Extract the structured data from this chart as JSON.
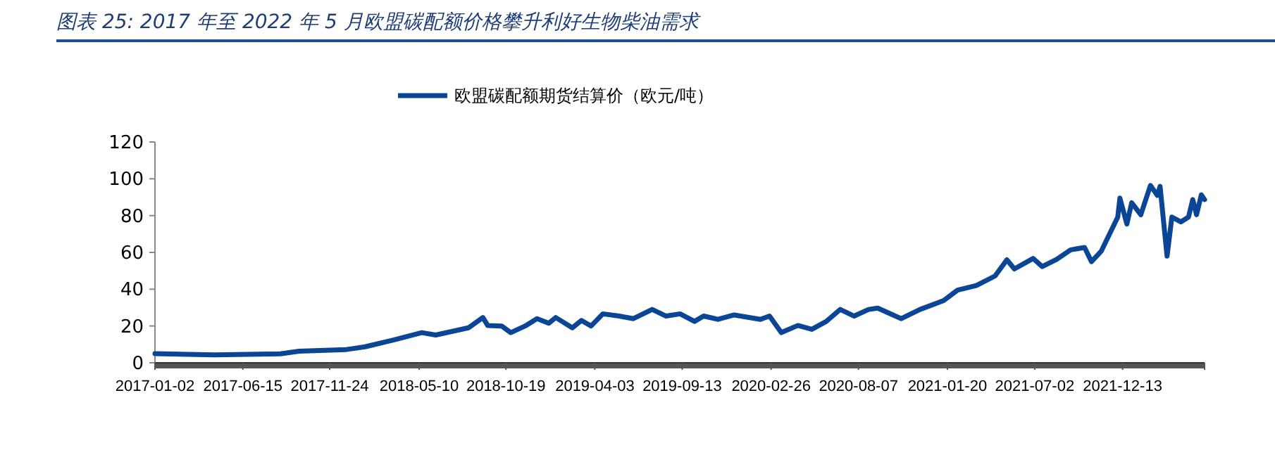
{
  "chart_data": {
    "type": "line",
    "title": "图表 25:  2017 年至 2022 年 5 月欧盟碳配额价格攀升利好生物柴油需求",
    "legend": "top",
    "grid": false,
    "marker": "none",
    "line_style": "solid",
    "xlim": [
      "2017-01-02",
      "2022-05-15"
    ],
    "xticks": [
      "2017-01-02",
      "2017-06-15",
      "2017-11-24",
      "2018-05-10",
      "2018-10-19",
      "2019-04-03",
      "2019-09-13",
      "2020-02-26",
      "2020-08-07",
      "2021-01-20",
      "2021-07-02",
      "2021-12-13"
    ],
    "ylim": [
      0,
      120
    ],
    "yticks": [
      0,
      20,
      40,
      60,
      80,
      100,
      120
    ],
    "x": [
      "2017-01-02",
      "2017-04-23",
      "2017-08-24",
      "2017-09-28",
      "2017-12-25",
      "2018-01-29",
      "2018-03-23",
      "2018-05-15",
      "2018-06-10",
      "2018-08-10",
      "2018-09-06",
      "2018-09-15",
      "2018-10-11",
      "2018-10-28",
      "2018-11-24",
      "2018-12-16",
      "2019-01-07",
      "2019-01-20",
      "2019-02-20",
      "2019-03-09",
      "2019-03-27",
      "2019-04-18",
      "2019-05-18",
      "2019-06-14",
      "2019-07-19",
      "2019-08-14",
      "2019-09-09",
      "2019-10-06",
      "2019-10-23",
      "2019-11-19",
      "2019-12-19",
      "2020-02-06",
      "2020-02-23",
      "2020-03-16",
      "2020-04-16",
      "2020-05-12",
      "2020-06-08",
      "2020-07-04",
      "2020-07-30",
      "2020-08-26",
      "2020-09-12",
      "2020-10-26",
      "2020-11-30",
      "2021-01-13",
      "2021-02-08",
      "2021-03-15",
      "2021-04-19",
      "2021-05-11",
      "2021-05-25",
      "2021-06-29",
      "2021-07-16",
      "2021-08-12",
      "2021-09-07",
      "2021-10-03",
      "2021-10-16",
      "2021-11-03",
      "2021-12-04",
      "2021-12-08",
      "2021-12-21",
      "2021-12-30",
      "2022-01-16",
      "2022-02-03",
      "2022-02-16",
      "2022-02-21",
      "2022-03-06",
      "2022-03-15",
      "2022-04-01",
      "2022-04-15",
      "2022-04-23",
      "2022-04-30",
      "2022-05-09",
      "2022-05-15"
    ],
    "series": [
      {
        "name": "欧盟碳配额期货结算价（欧元/吨）",
        "color": "#0b4596",
        "values": [
          5,
          4.3,
          4.9,
          6.3,
          7.2,
          8.7,
          12.4,
          16.4,
          15.1,
          19,
          24.6,
          20.3,
          20,
          16.4,
          20,
          24,
          21.5,
          24.6,
          19,
          23,
          20,
          26.6,
          25.4,
          24,
          29,
          25.4,
          26.6,
          22.5,
          25.4,
          23.6,
          26,
          23.6,
          25.4,
          16.4,
          20.3,
          18.2,
          22.5,
          29,
          25.4,
          29,
          29.7,
          24,
          29,
          33.8,
          39.5,
          42,
          47.2,
          56,
          51,
          56.7,
          52.3,
          56.2,
          61.4,
          62.7,
          55,
          60.6,
          79.2,
          89.5,
          75.4,
          87,
          80.5,
          96.4,
          91,
          95.9,
          58,
          79.2,
          76.6,
          79.2,
          88.7,
          80.5,
          91.3,
          88.7
        ]
      }
    ]
  }
}
